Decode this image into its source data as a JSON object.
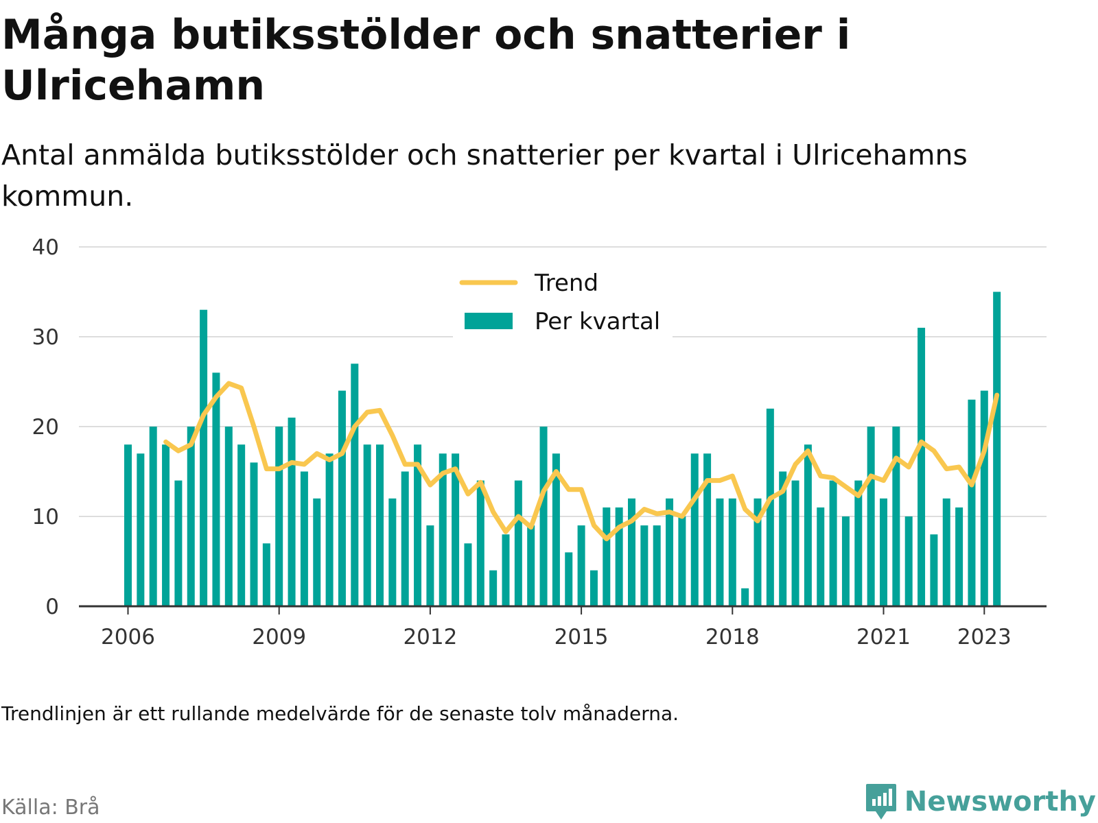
{
  "title": "Många butiksstölder och snatterier i Ulricehamn",
  "subtitle": "Antal anmälda butiksstölder och snatterier per kvartal i Ulricehamns kommun.",
  "note": "Trendlinjen är ett rullande medelvärde för de senaste tolv månaderna.",
  "source": "Källa: Brå",
  "brand": {
    "name": "Newsworthy",
    "icon": "newsworthy-logo-icon"
  },
  "colors": {
    "bars": "#00a398",
    "trend": "#f9c74f",
    "grid": "#dddddd",
    "axis": "#333333",
    "brand": "#46a09a"
  },
  "chart_data": {
    "type": "bar",
    "x_start": "2006 Q1",
    "x_ticks": [
      "2006",
      "2009",
      "2012",
      "2015",
      "2018",
      "2021",
      "2023"
    ],
    "y_ticks": [
      "0",
      "10",
      "20",
      "30",
      "40"
    ],
    "ylim": [
      0,
      40
    ],
    "grid": true,
    "legend": {
      "position": "top-center",
      "items": [
        "Trend",
        "Per kvartal"
      ]
    },
    "series": [
      {
        "name": "Per kvartal",
        "type": "bar",
        "values": [
          18,
          17,
          20,
          18,
          14,
          20,
          33,
          26,
          20,
          18,
          16,
          7,
          20,
          21,
          15,
          12,
          17,
          24,
          27,
          18,
          18,
          12,
          15,
          18,
          9,
          17,
          17,
          7,
          14,
          4,
          8,
          14,
          9,
          20,
          17,
          6,
          9,
          4,
          11,
          11,
          12,
          9,
          9,
          12,
          10,
          17,
          17,
          12,
          12,
          2,
          12,
          22,
          15,
          14,
          18,
          11,
          14,
          10,
          14,
          20,
          12,
          20,
          10,
          31,
          8,
          12,
          11,
          23,
          24,
          35
        ]
      },
      {
        "name": "Trend",
        "type": "line",
        "start_index": 3,
        "values": [
          18.3,
          17.3,
          18.0,
          21.3,
          23.3,
          24.8,
          24.3,
          20.0,
          15.3,
          15.3,
          16.0,
          15.8,
          17.0,
          16.3,
          17.0,
          20.0,
          21.6,
          21.8,
          19.0,
          15.8,
          15.8,
          13.5,
          14.8,
          15.3,
          12.5,
          13.8,
          10.5,
          8.3,
          10.0,
          8.8,
          12.8,
          15.0,
          13.0,
          13.0,
          9.0,
          7.5,
          8.8,
          9.5,
          10.8,
          10.3,
          10.5,
          10.0,
          12.0,
          14.0,
          14.0,
          14.5,
          10.8,
          9.5,
          12.0,
          12.8,
          15.8,
          17.3,
          14.5,
          14.3,
          13.3,
          12.3,
          14.5,
          14.0,
          16.5,
          15.5,
          18.3,
          17.3,
          15.3,
          15.5,
          13.5,
          17.3,
          23.5
        ]
      }
    ]
  }
}
